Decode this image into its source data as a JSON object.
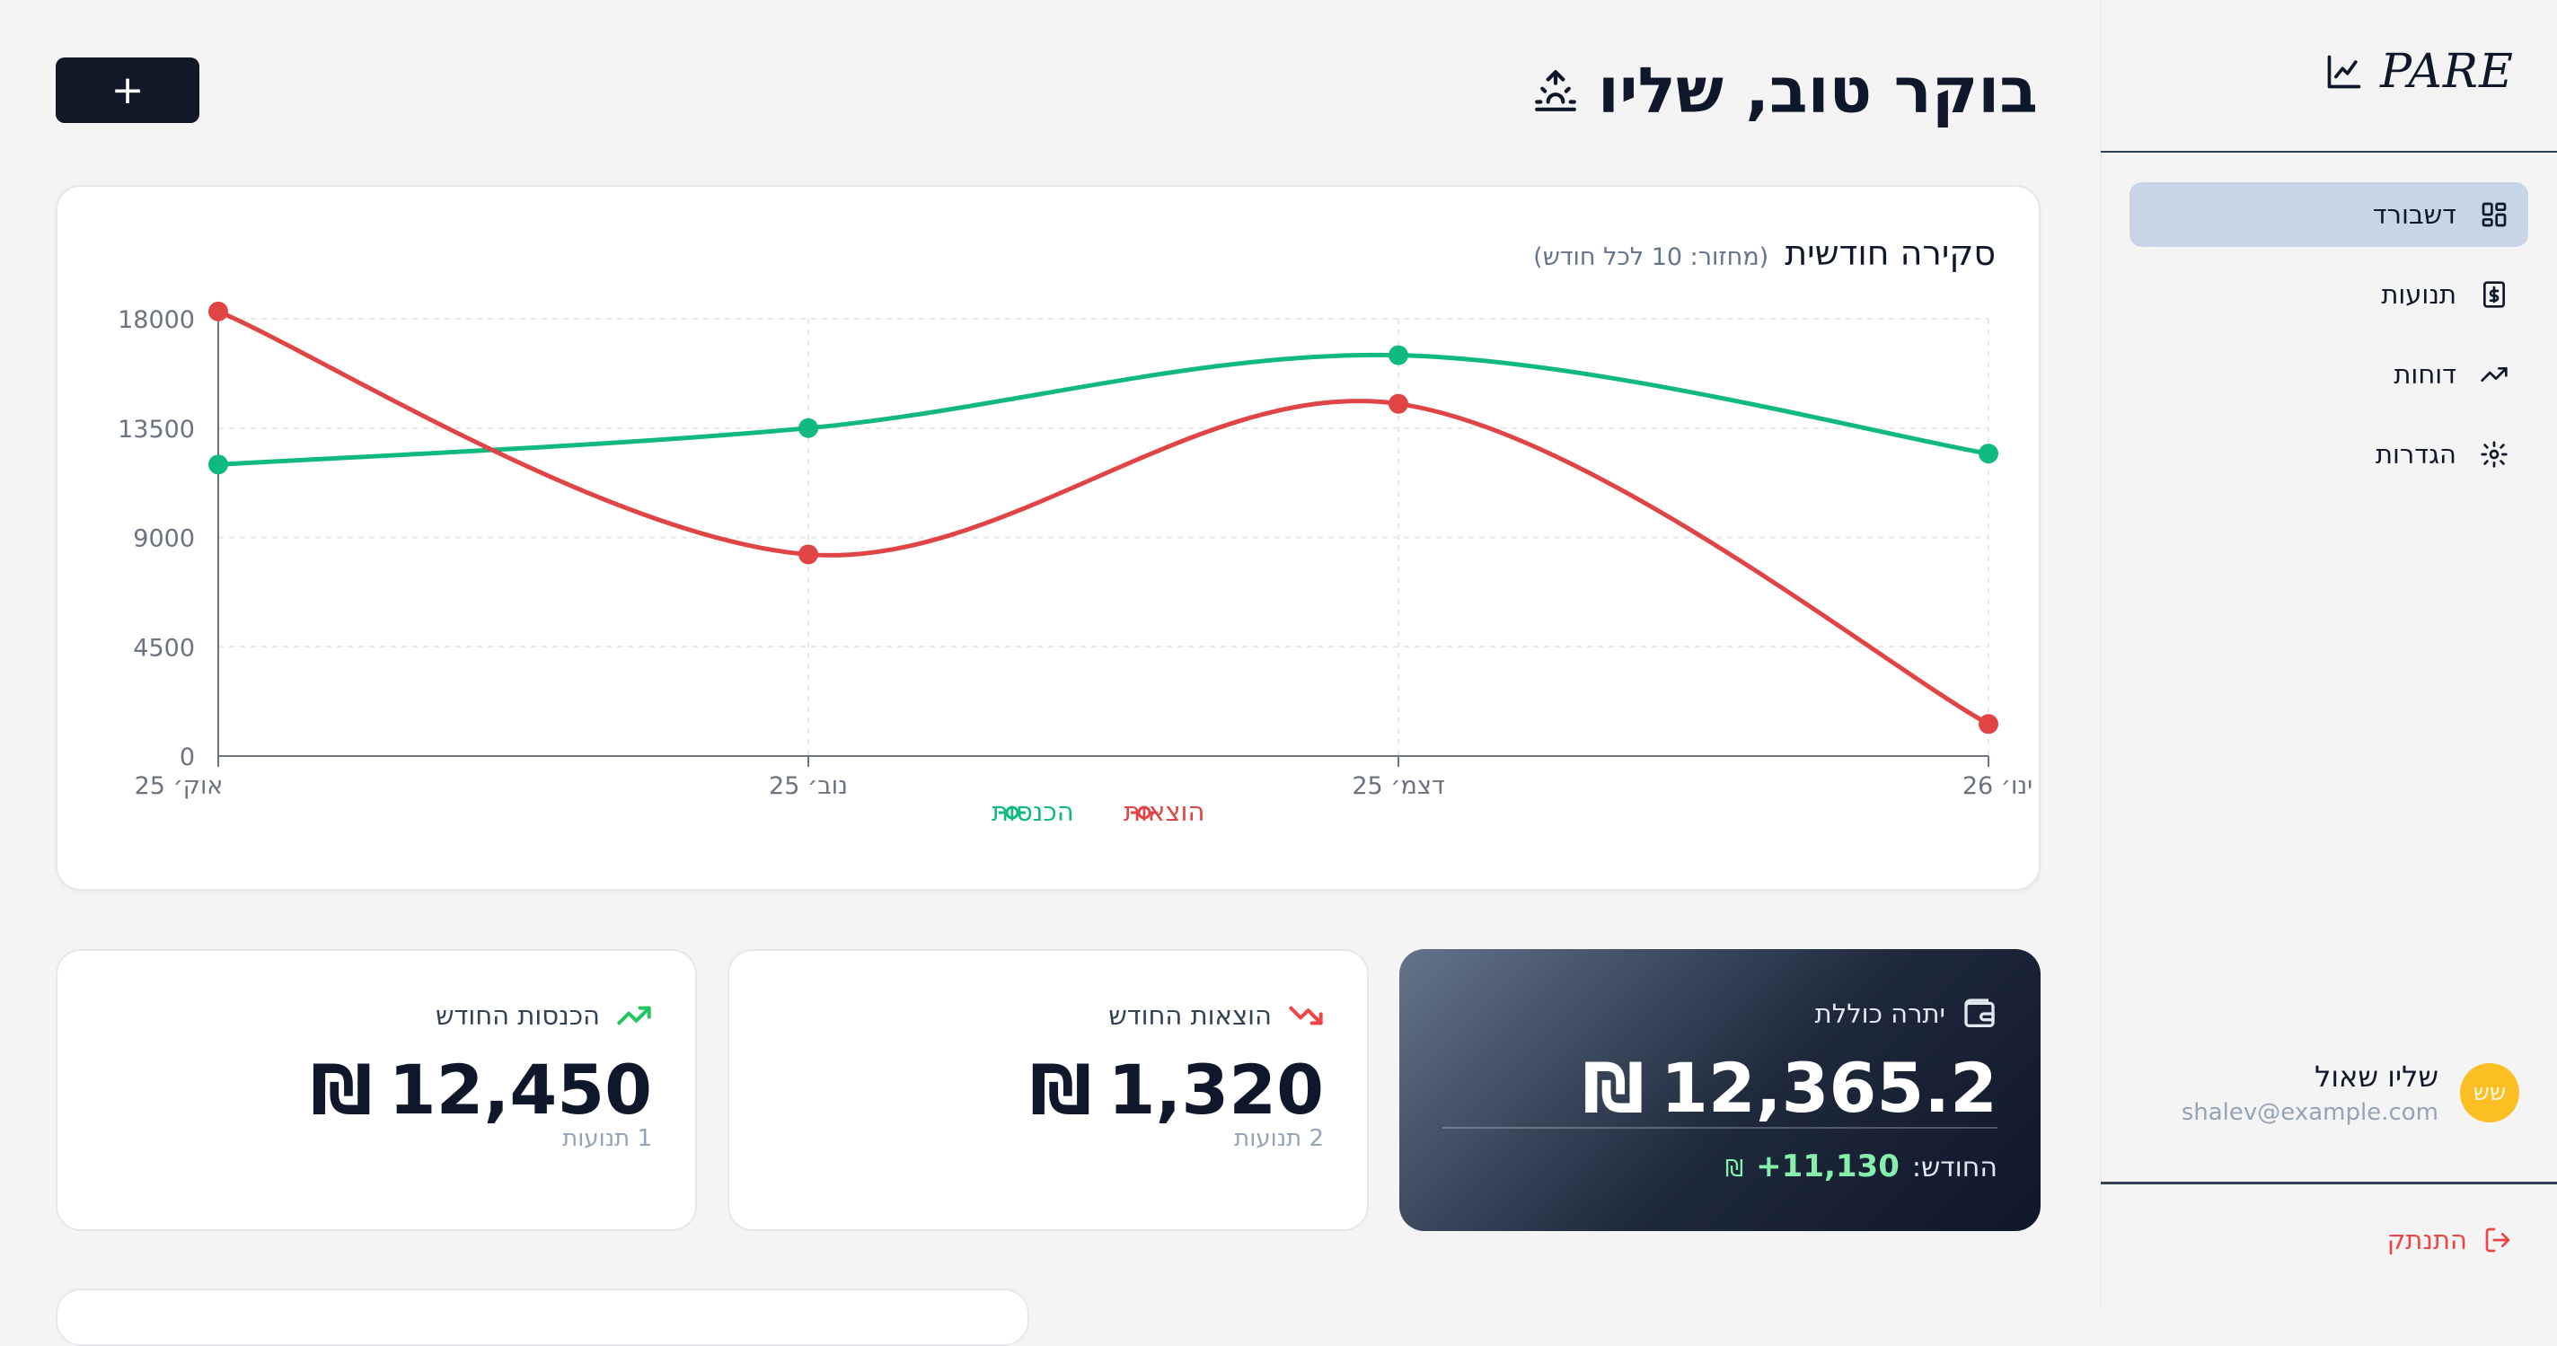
{
  "brand": {
    "name": "PARE",
    "icon": "line-chart-icon"
  },
  "sidebar": {
    "items": [
      {
        "label": "דשבורד",
        "icon": "grid-icon",
        "active": true
      },
      {
        "label": "תנועות",
        "icon": "dollar-square-icon",
        "active": false
      },
      {
        "label": "דוחות",
        "icon": "trending-up-icon",
        "active": false
      },
      {
        "label": "הגדרות",
        "icon": "gear-icon",
        "active": false
      }
    ],
    "user": {
      "initials": "שש",
      "name": "שליו שאול",
      "email": "shalev@example.com"
    },
    "logout_label": "התנתק"
  },
  "header": {
    "greeting": "בוקר טוב, שליו",
    "greeting_icon": "sunrise-icon",
    "add_label": "+"
  },
  "chart": {
    "title": "סקירה חודשית",
    "subtitle": "(מחזור: 10 לכל חודש)"
  },
  "chart_data": {
    "type": "line",
    "x": [
      "אוק׳ 25",
      "נוב׳ 25",
      "דצמ׳ 25",
      "ינו׳ 26"
    ],
    "yticks": [
      0,
      4500,
      9000,
      13500,
      18000
    ],
    "ylim": [
      0,
      18000
    ],
    "grid": true,
    "legend_position": "bottom",
    "series": [
      {
        "name": "הכנסות",
        "color": "#10b981",
        "values": [
          12000,
          13500,
          16500,
          12450
        ]
      },
      {
        "name": "הוצאות",
        "color": "#e04444",
        "values": [
          18300,
          8300,
          14500,
          1320
        ]
      }
    ]
  },
  "stats": {
    "income": {
      "label": "הכנסות החודש",
      "value": "12,450",
      "currency": "₪",
      "sub": "1 תנועות",
      "icon": "trending-up-icon",
      "color": "#22c55e"
    },
    "expenses": {
      "label": "הוצאות החודש",
      "value": "1,320",
      "currency": "₪",
      "sub": "2 תנועות",
      "icon": "trending-down-icon",
      "color": "#ef4444"
    },
    "balance": {
      "label": "יתרה כוללת",
      "value": "12,365.2",
      "currency": "₪",
      "month_label": "החודש:",
      "month_delta": "+11,130",
      "icon": "wallet-icon"
    }
  }
}
